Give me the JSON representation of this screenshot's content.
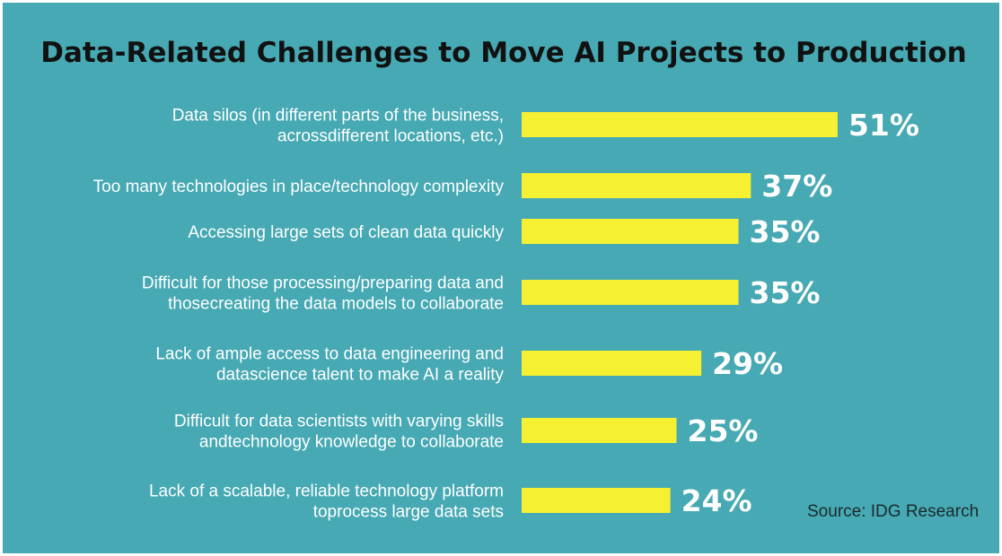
{
  "chart_data": {
    "type": "bar",
    "orientation": "horizontal",
    "title": "Data-Related Challenges to Move AI Projects to Production",
    "categories": [
      [
        "Data silos (in different parts of the business,",
        "acrossdifferent locations, etc.)"
      ],
      [
        "Too many technologies in place/technology complexity"
      ],
      [
        "Accessing large sets of clean data quickly"
      ],
      [
        "Difficult for those processing/preparing data and",
        "thosecreating the data models to collaborate"
      ],
      [
        "Lack of ample access to data engineering and",
        "datascience talent to make AI a reality"
      ],
      [
        "Difficult for data scientists with varying skills",
        "andtechnology knowledge to collaborate"
      ],
      [
        "Lack of a scalable, reliable technology platform",
        "toprocess large data sets"
      ]
    ],
    "values": [
      51,
      37,
      35,
      35,
      29,
      25,
      24
    ],
    "value_labels": [
      "51%",
      "37%",
      "35%",
      "35%",
      "29%",
      "25%",
      "24%"
    ],
    "unit": "%",
    "grid": false,
    "legend": "none",
    "bar_color": "#f5f032",
    "background_color": "#46a9b3",
    "source": "Source: IDG Research"
  }
}
